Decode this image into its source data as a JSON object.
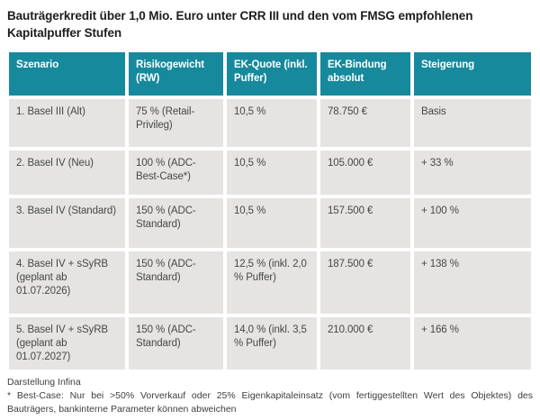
{
  "title": "Bauträgerkredit über 1,0 Mio. Euro unter CRR III und den vom FMSG empfohlenen Kapitalpuffer Stufen",
  "chart_data": {
    "type": "table",
    "columns": [
      "Szenario",
      "Risikogewicht (RW)",
      "EK-Quote (inkl. Puffer)",
      "EK-Bindung absolut",
      "Steigerung"
    ],
    "rows": [
      [
        "1. Basel III (Alt)",
        "75 % (Retail-Privileg)",
        "10,5 %",
        "78.750 €",
        "Basis"
      ],
      [
        "2. Basel IV (Neu)",
        "100 % (ADC-Best-Case*)",
        "10,5 %",
        "105.000 €",
        "+ 33 %"
      ],
      [
        "3. Basel IV (Standard)",
        "150 % (ADC-Standard)",
        "10,5 %",
        "157.500 €",
        "+ 100 %"
      ],
      [
        "4. Basel IV + sSyRB (geplant ab 01.07.2026)",
        "150 % (ADC-Standard)",
        "12,5 % (inkl. 2,0 % Puffer)",
        "187.500 €",
        "+ 138 %"
      ],
      [
        "5. Basel IV + sSyRB (geplant ab 01.07.2027)",
        "150 % (ADC-Standard)",
        "14,0 % (inkl. 3,5 % Puffer)",
        "210.000 €",
        "+ 166 %"
      ]
    ],
    "legend_position": "none",
    "grid": "off"
  },
  "footer": {
    "source": "Darstellung Infina",
    "footnote": "* Best-Case: Nur bei >50% Vorverkauf oder 25% Eigenkapitaleinsatz (vom fertiggestellten Wert des Objektes) des Bauträgers, bankinterne Parameter können abweichen"
  },
  "colors": {
    "header_bg": "#17899c",
    "header_text": "#ffffff",
    "row_bg": "#e5e4e2",
    "body_text": "#474747",
    "title_text": "#1d1d1b"
  }
}
